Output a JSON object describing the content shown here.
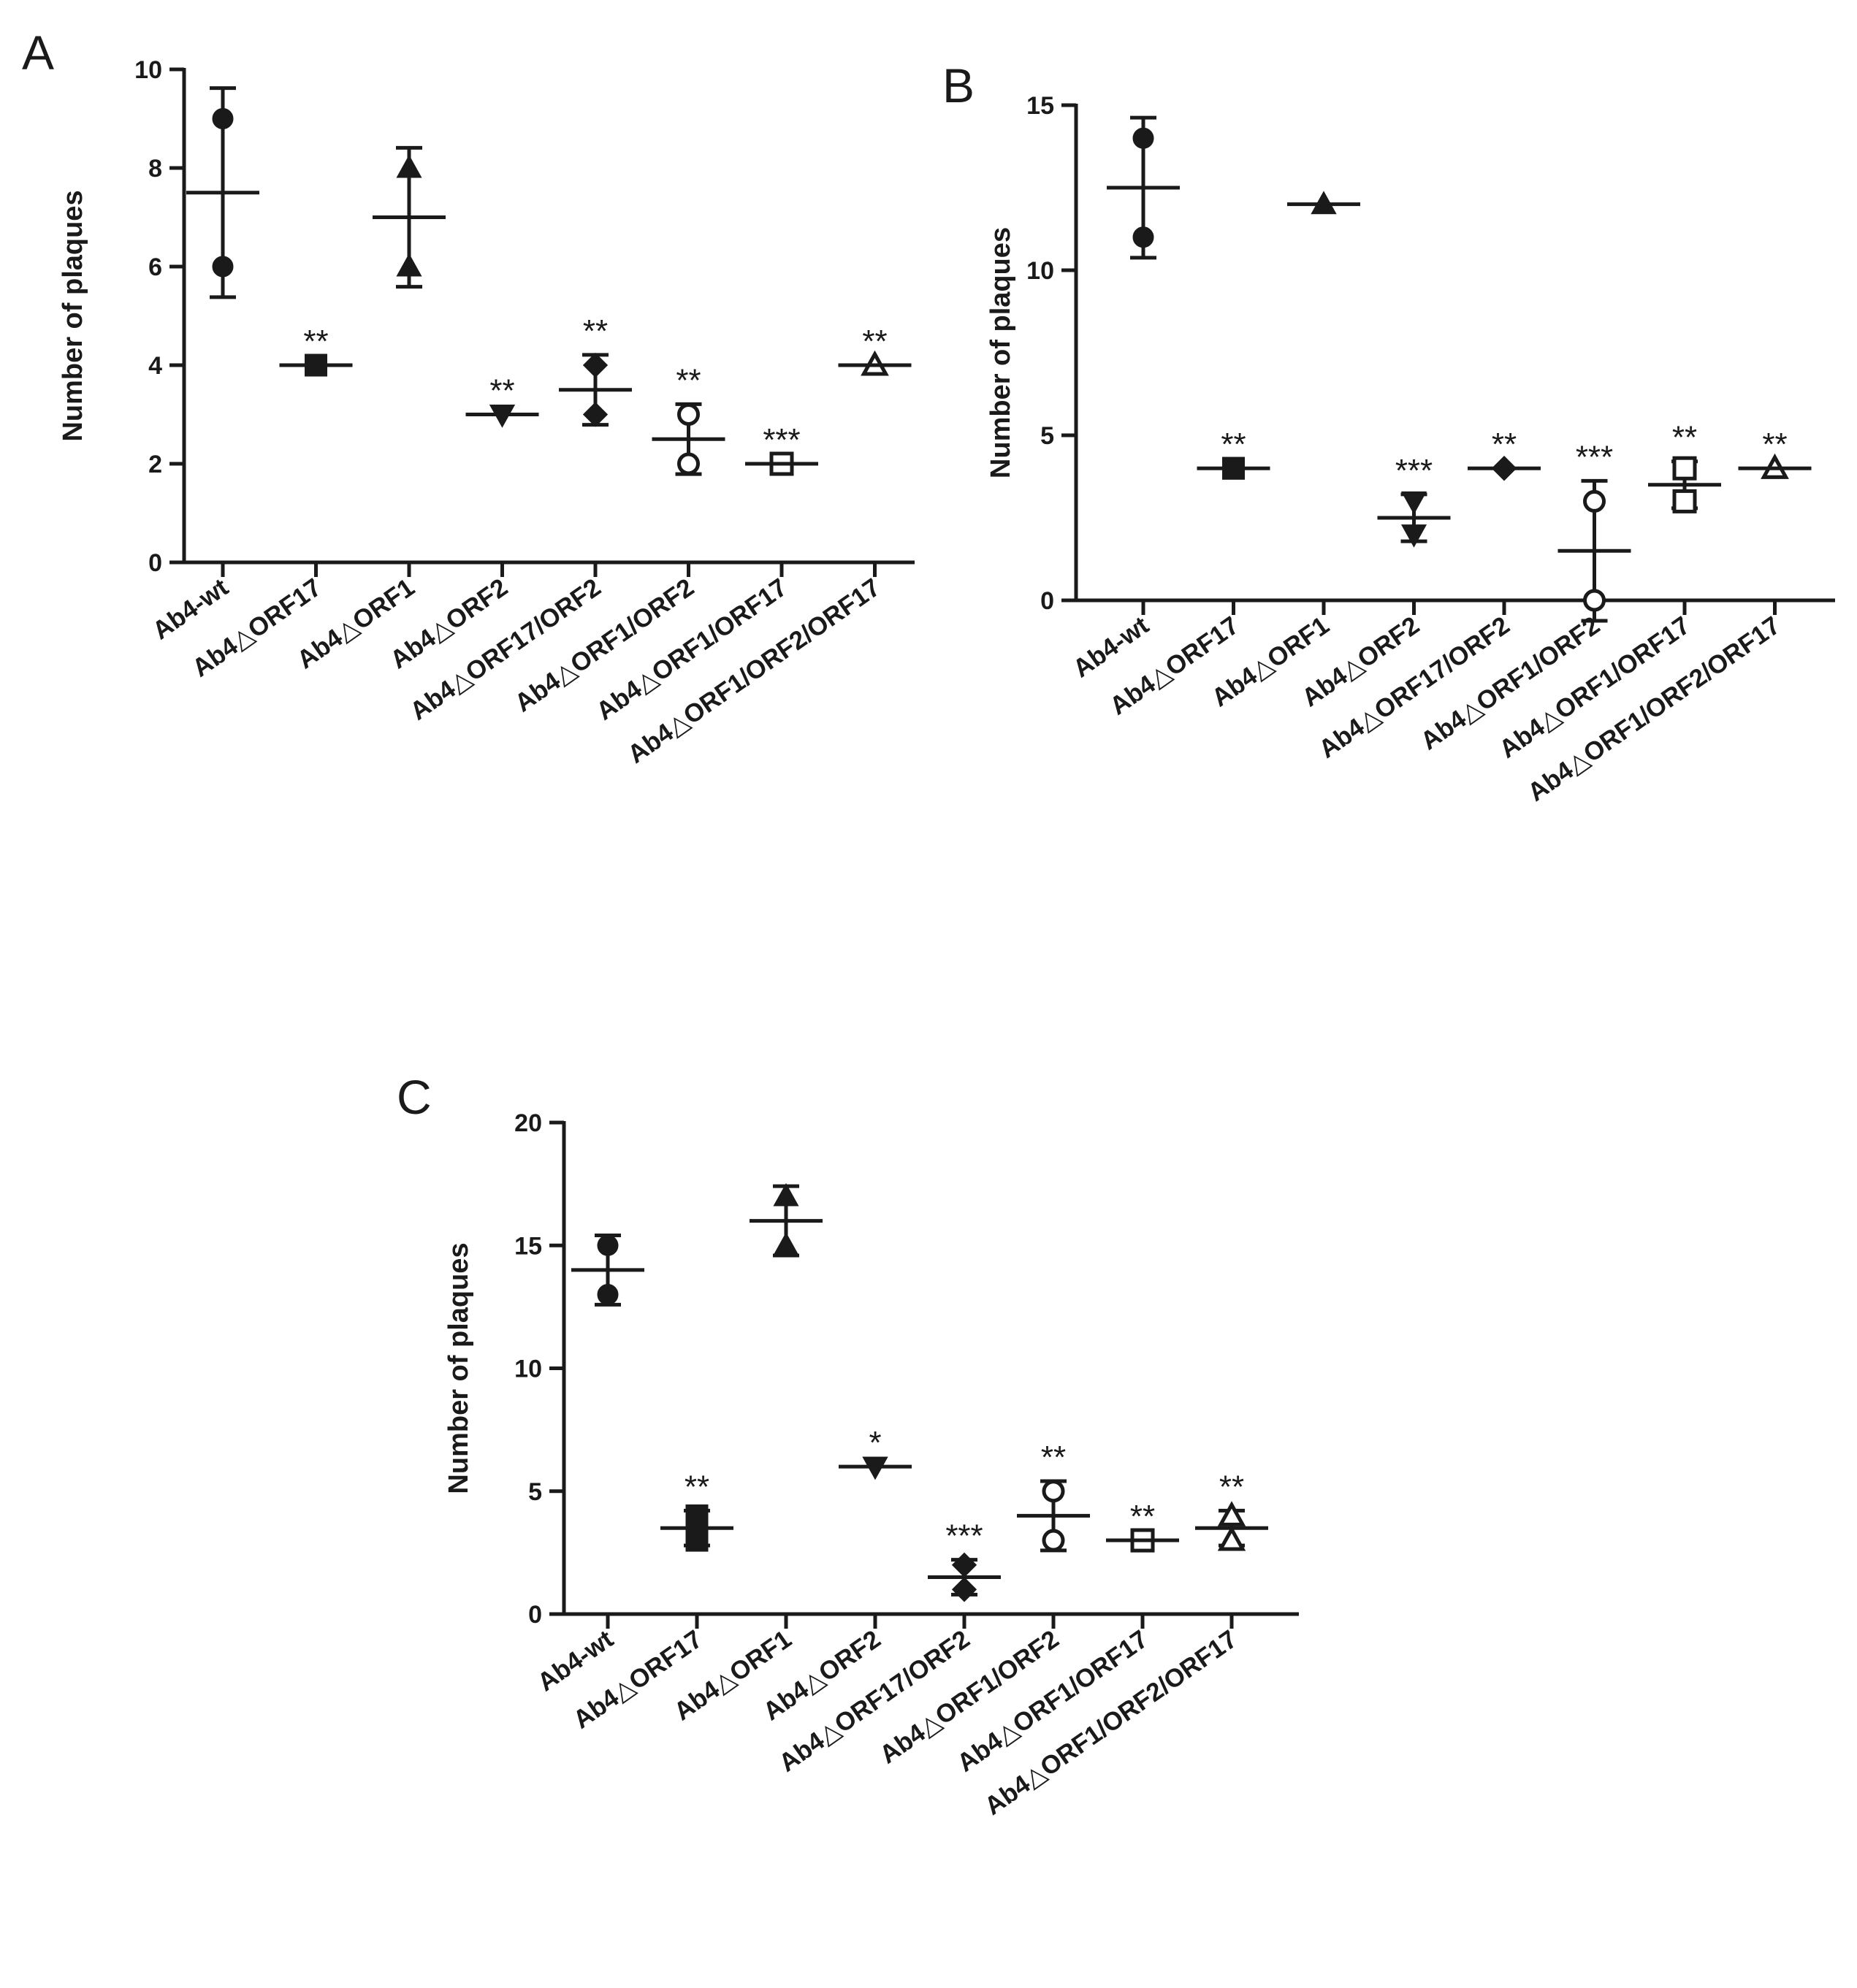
{
  "figure": {
    "panel_count": 3
  },
  "chart_data": [
    {
      "panel": "A",
      "type": "scatter",
      "ylabel": "Number of plaques",
      "ylim": [
        0,
        10
      ],
      "yticks": [
        0,
        2,
        4,
        6,
        8,
        10
      ],
      "categories": [
        "Ab4-wt",
        "Ab4△ORF17",
        "Ab4△ORF1",
        "Ab4△ORF2",
        "Ab4△ORF17/ORF2",
        "Ab4△ORF1/ORF2",
        "Ab4△ORF1/ORF17",
        "Ab4△ORF1/ORF2/ORF17"
      ],
      "markers": [
        "circle",
        "square",
        "triangle-up",
        "triangle-down",
        "diamond",
        "circle-open",
        "square-open",
        "triangle-up-open"
      ],
      "points": [
        [
          6,
          9
        ],
        [
          4,
          4
        ],
        [
          6,
          8
        ],
        [
          3,
          3
        ],
        [
          3,
          4
        ],
        [
          2,
          3
        ],
        [
          2,
          2
        ],
        [
          4,
          4
        ]
      ],
      "mean": [
        7.5,
        4,
        7,
        3,
        3.5,
        2.5,
        2,
        4
      ],
      "sd": [
        2.12,
        0,
        1.41,
        0,
        0.71,
        0.71,
        0,
        0
      ],
      "significance": [
        "",
        "**",
        "",
        "**",
        "**",
        "**",
        "***",
        "**"
      ]
    },
    {
      "panel": "B",
      "type": "scatter",
      "ylabel": "Number of plaques",
      "ylim": [
        0,
        15
      ],
      "yticks": [
        0,
        5,
        10,
        15
      ],
      "categories": [
        "Ab4-wt",
        "Ab4△ORF17",
        "Ab4△ORF1",
        "Ab4△ORF2",
        "Ab4△ORF17/ORF2",
        "Ab4△ORF1/ORF2",
        "Ab4△ORF1/ORF17",
        "Ab4△ORF1/ORF2/ORF17"
      ],
      "markers": [
        "circle",
        "square",
        "triangle-up",
        "triangle-down",
        "diamond",
        "circle-open",
        "square-open",
        "triangle-up-open"
      ],
      "points": [
        [
          11,
          14
        ],
        [
          4,
          4
        ],
        [
          12,
          12
        ],
        [
          2,
          3
        ],
        [
          4,
          4
        ],
        [
          0,
          3
        ],
        [
          3,
          4
        ],
        [
          4,
          4
        ]
      ],
      "mean": [
        12.5,
        4,
        12,
        2.5,
        4,
        1.5,
        3.5,
        4
      ],
      "sd": [
        2.12,
        0,
        0,
        0.71,
        0,
        2.12,
        0.71,
        0
      ],
      "significance": [
        "",
        "**",
        "",
        "***",
        "**",
        "***",
        "**",
        "**"
      ]
    },
    {
      "panel": "C",
      "type": "scatter",
      "ylabel": "Number of plaques",
      "ylim": [
        0,
        20
      ],
      "yticks": [
        0,
        5,
        10,
        15,
        20
      ],
      "categories": [
        "Ab4-wt",
        "Ab4△ORF17",
        "Ab4△ORF1",
        "Ab4△ORF2",
        "Ab4△ORF17/ORF2",
        "Ab4△ORF1/ORF2",
        "Ab4△ORF1/ORF17",
        "Ab4△ORF1/ORF2/ORF17"
      ],
      "markers": [
        "circle",
        "square",
        "triangle-up",
        "triangle-down",
        "diamond",
        "circle-open",
        "square-open",
        "triangle-up-open"
      ],
      "points": [
        [
          13,
          15
        ],
        [
          3,
          4
        ],
        [
          15,
          17
        ],
        [
          6,
          6
        ],
        [
          1,
          2
        ],
        [
          3,
          5
        ],
        [
          3,
          3
        ],
        [
          3,
          4
        ]
      ],
      "mean": [
        14,
        3.5,
        16,
        6,
        1.5,
        4,
        3,
        3.5
      ],
      "sd": [
        1.41,
        0.71,
        1.41,
        0,
        0.71,
        1.41,
        0,
        0.71
      ],
      "significance": [
        "",
        "**",
        "",
        "*",
        "***",
        "**",
        "**",
        "**"
      ]
    }
  ]
}
